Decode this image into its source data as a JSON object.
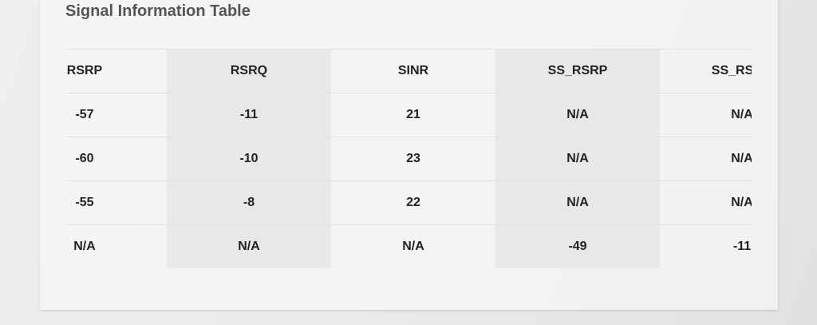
{
  "title": "Signal Information Table",
  "table": {
    "headers": [
      "RSRP",
      "RSRQ",
      "SINR",
      "SS_RSRP",
      "SS_RSRQ"
    ],
    "rows": [
      [
        "-57",
        "-11",
        "21",
        "N/A",
        "N/A"
      ],
      [
        "-60",
        "-10",
        "23",
        "N/A",
        "N/A"
      ],
      [
        "-55",
        "-8",
        "22",
        "N/A",
        "N/A"
      ],
      [
        "N/A",
        "N/A",
        "N/A",
        "-49",
        "-11"
      ]
    ]
  }
}
